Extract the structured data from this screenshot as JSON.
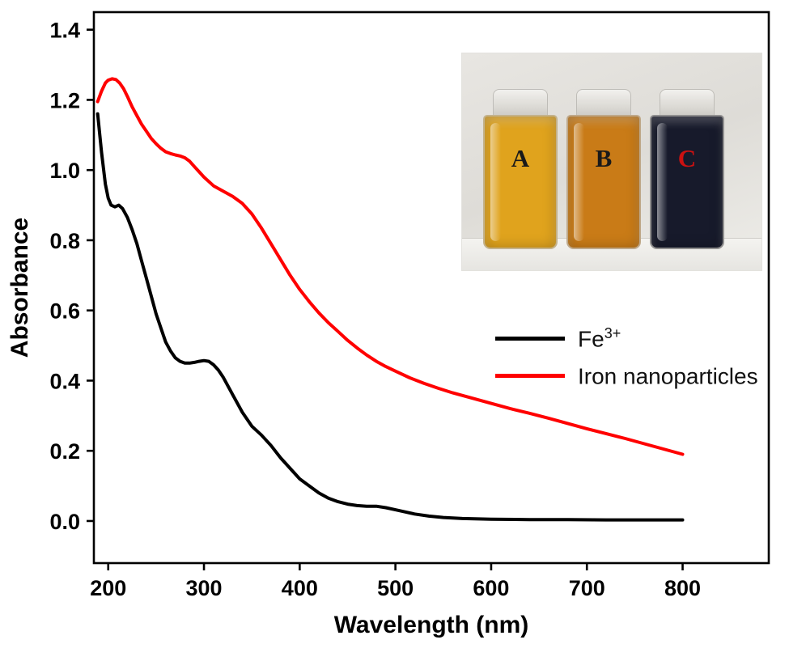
{
  "figure": {
    "background_color": "#ffffff"
  },
  "chart_data": {
    "type": "line",
    "title": "",
    "xlabel": "Wavelength (nm)",
    "ylabel": "Absorbance",
    "xlim": [
      185,
      890
    ],
    "ylim": [
      -0.12,
      1.45
    ],
    "xticks": [
      200,
      300,
      400,
      500,
      600,
      700,
      800
    ],
    "yticks": [
      0.0,
      0.2,
      0.4,
      0.6,
      0.8,
      1.0,
      1.2,
      1.4
    ],
    "grid": false,
    "frame": true,
    "frame_color": "#000000",
    "legend_position": "center-right",
    "series": [
      {
        "id": "fe3",
        "name": "Fe3+",
        "color": "#000000",
        "x": [
          189,
          193,
          197,
          200,
          203,
          207,
          211,
          215,
          220,
          225,
          230,
          235,
          240,
          245,
          250,
          255,
          260,
          265,
          270,
          275,
          280,
          285,
          290,
          295,
          300,
          305,
          310,
          315,
          320,
          330,
          340,
          350,
          360,
          370,
          380,
          390,
          400,
          410,
          420,
          430,
          440,
          450,
          460,
          470,
          480,
          490,
          500,
          510,
          520,
          535,
          550,
          570,
          600,
          640,
          680,
          720,
          760,
          800
        ],
        "y": [
          1.16,
          1.05,
          0.96,
          0.92,
          0.9,
          0.895,
          0.9,
          0.89,
          0.865,
          0.83,
          0.79,
          0.74,
          0.69,
          0.64,
          0.59,
          0.55,
          0.51,
          0.485,
          0.465,
          0.455,
          0.45,
          0.45,
          0.452,
          0.455,
          0.457,
          0.455,
          0.445,
          0.43,
          0.41,
          0.36,
          0.31,
          0.27,
          0.245,
          0.215,
          0.18,
          0.15,
          0.12,
          0.1,
          0.08,
          0.065,
          0.055,
          0.048,
          0.044,
          0.042,
          0.042,
          0.038,
          0.032,
          0.026,
          0.02,
          0.014,
          0.01,
          0.007,
          0.005,
          0.004,
          0.004,
          0.003,
          0.003,
          0.003
        ]
      },
      {
        "id": "iron-nanoparticles",
        "name": "Iron nanoparticles",
        "color": "#ff0000",
        "x": [
          189,
          193,
          197,
          200,
          204,
          208,
          212,
          216,
          220,
          225,
          230,
          235,
          240,
          245,
          250,
          255,
          260,
          265,
          270,
          275,
          280,
          285,
          290,
          295,
          300,
          310,
          320,
          330,
          340,
          350,
          360,
          370,
          380,
          390,
          400,
          410,
          420,
          430,
          440,
          450,
          460,
          470,
          480,
          490,
          500,
          515,
          530,
          545,
          560,
          580,
          600,
          620,
          640,
          660,
          680,
          700,
          720,
          740,
          760,
          780,
          800
        ],
        "y": [
          1.195,
          1.225,
          1.248,
          1.256,
          1.26,
          1.258,
          1.248,
          1.232,
          1.21,
          1.18,
          1.155,
          1.13,
          1.11,
          1.09,
          1.075,
          1.062,
          1.052,
          1.047,
          1.043,
          1.04,
          1.035,
          1.025,
          1.01,
          0.995,
          0.98,
          0.955,
          0.94,
          0.925,
          0.905,
          0.875,
          0.835,
          0.79,
          0.745,
          0.7,
          0.66,
          0.625,
          0.593,
          0.565,
          0.54,
          0.515,
          0.493,
          0.473,
          0.455,
          0.44,
          0.427,
          0.408,
          0.392,
          0.378,
          0.365,
          0.35,
          0.335,
          0.32,
          0.307,
          0.293,
          0.278,
          0.263,
          0.249,
          0.235,
          0.22,
          0.205,
          0.19
        ]
      }
    ]
  },
  "legend": {
    "items": [
      {
        "id": "fe3",
        "label": "Fe",
        "superscript": "3+",
        "color": "#000000"
      },
      {
        "id": "iron-nanoparticles",
        "label": "Iron nanoparticles",
        "superscript": "",
        "color": "#ff0000"
      }
    ]
  },
  "inset": {
    "vials": [
      {
        "label": "A",
        "label_color": "#1a1a1a",
        "liquid_color": "#e0a31d"
      },
      {
        "label": "B",
        "label_color": "#1a1a1a",
        "liquid_color": "#c97b17"
      },
      {
        "label": "C",
        "label_color": "#cc1111",
        "liquid_color": "#171a2b"
      }
    ],
    "wall_color": "#dedcd7",
    "counter_color": "#f4f3f0"
  }
}
